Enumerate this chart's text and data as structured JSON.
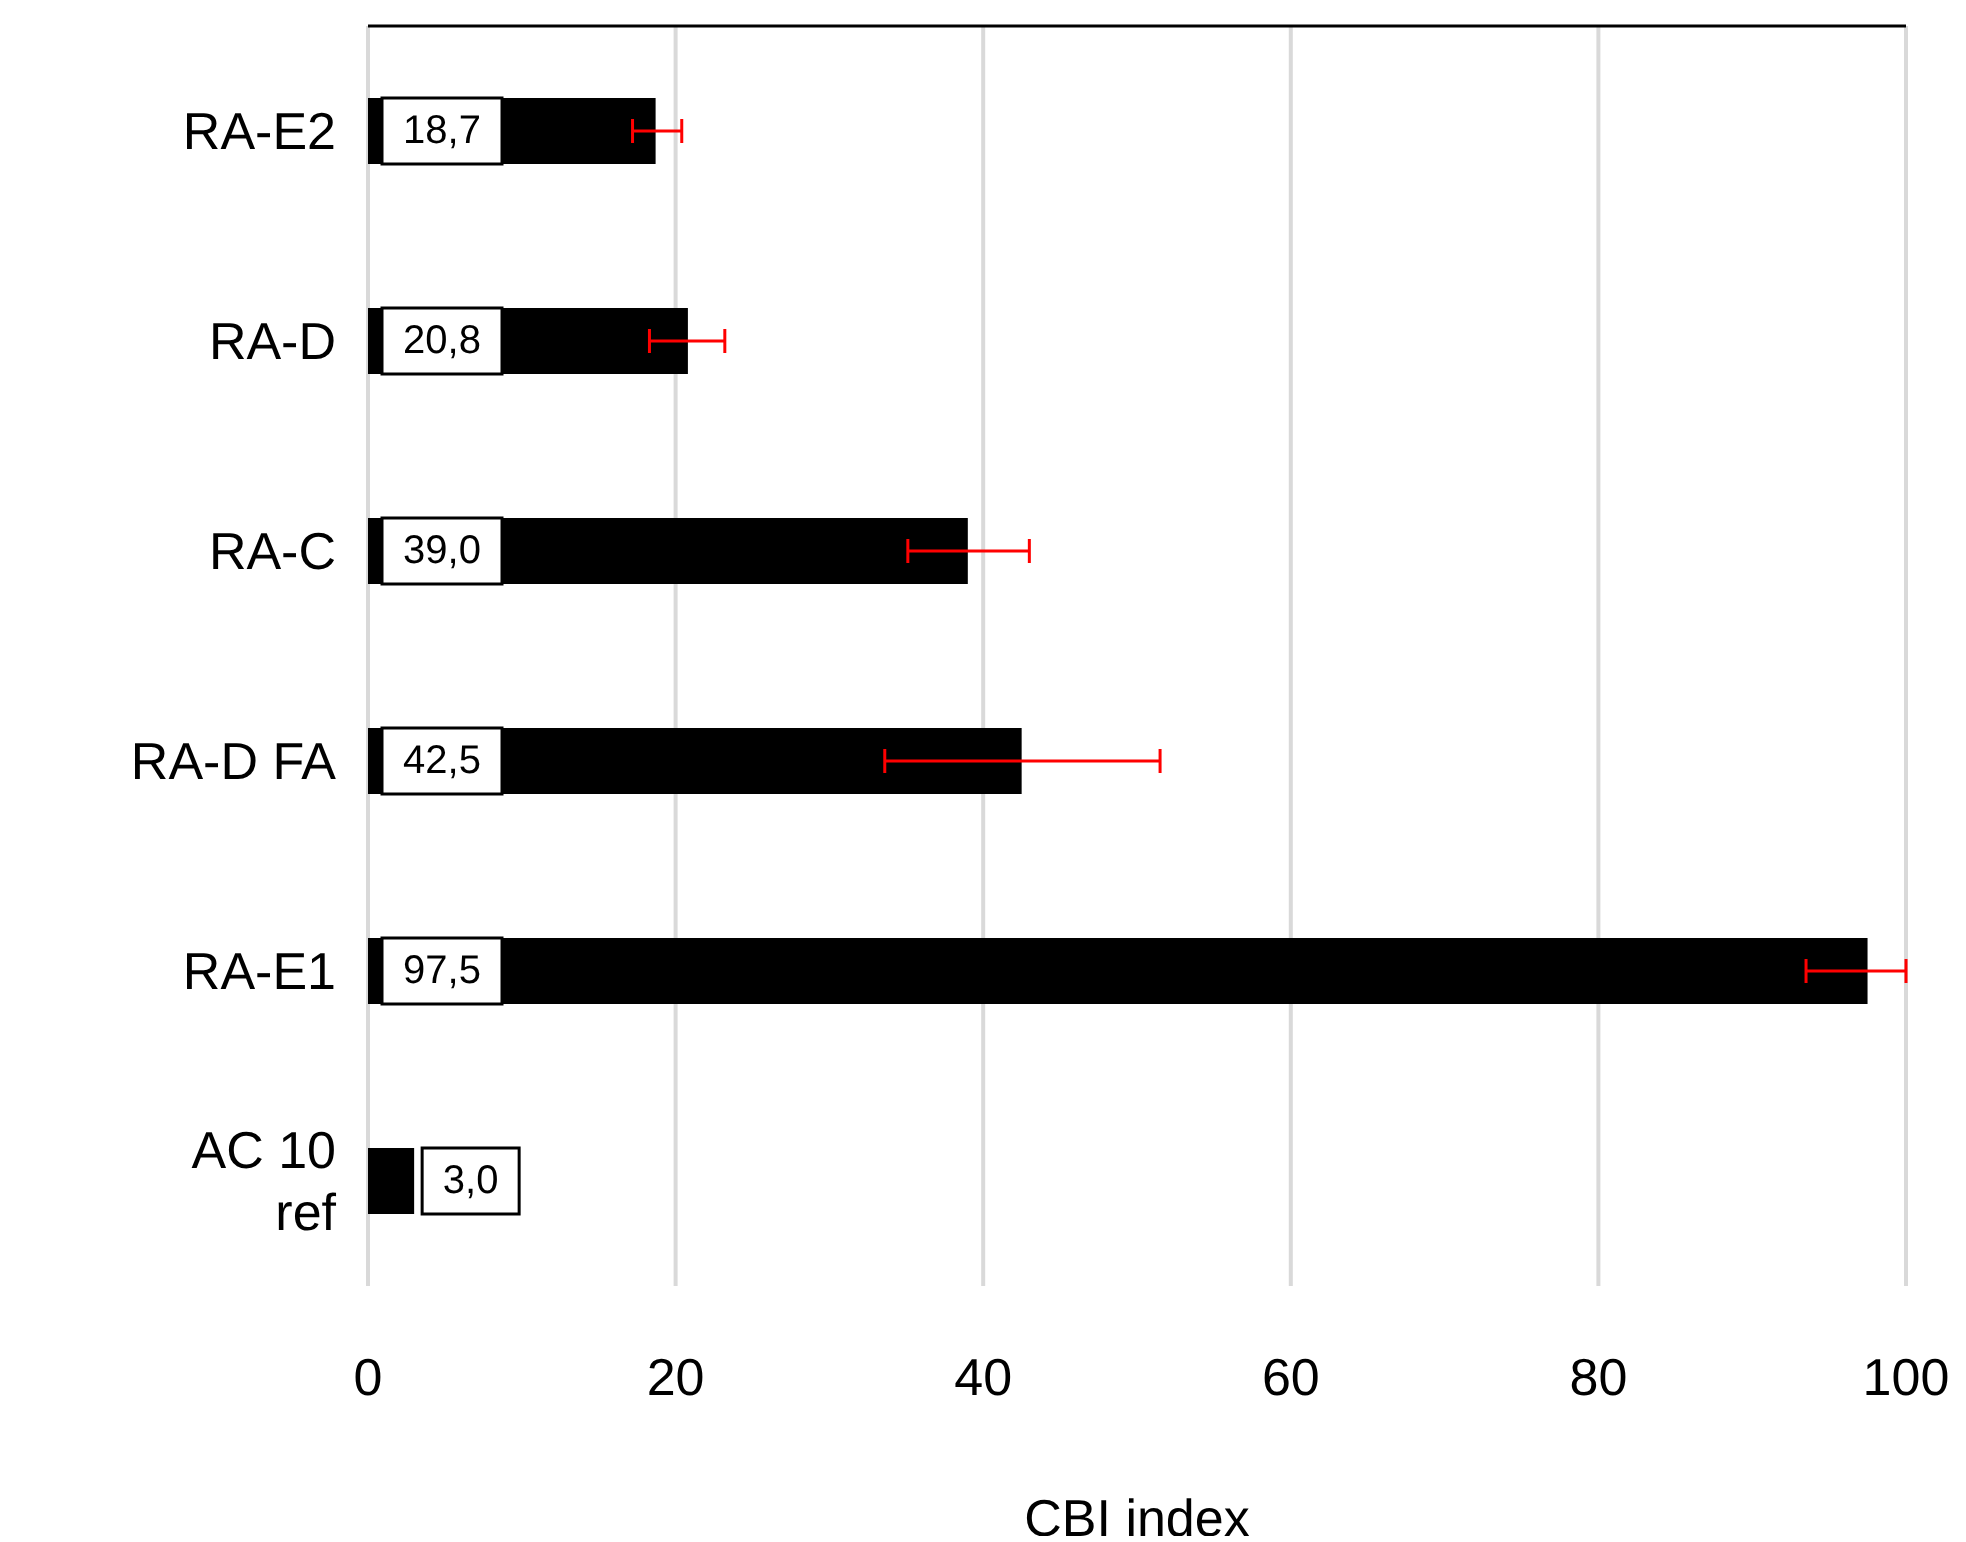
{
  "chart_data": {
    "type": "bar",
    "orientation": "horizontal",
    "xlabel": "CBI index",
    "categories": [
      "RA-E2",
      "RA-D",
      "RA-C",
      "RA-D FA",
      "RA-E1",
      "AC 10\nref"
    ],
    "values": [
      18.7,
      20.8,
      39.0,
      42.5,
      97.5,
      3.0
    ],
    "value_labels": [
      "18,7",
      "20,8",
      "39,0",
      "42,5",
      "97,5",
      "3,0"
    ],
    "errors": [
      [
        17.2,
        20.4
      ],
      [
        18.3,
        23.2
      ],
      [
        35.1,
        43.0
      ],
      [
        33.6,
        51.5
      ],
      [
        93.5,
        100
      ],
      null
    ],
    "color": "#000000",
    "xlim": [
      0,
      100
    ],
    "xticks": [
      0,
      20,
      40,
      60,
      80,
      100
    ],
    "grid": "x"
  }
}
